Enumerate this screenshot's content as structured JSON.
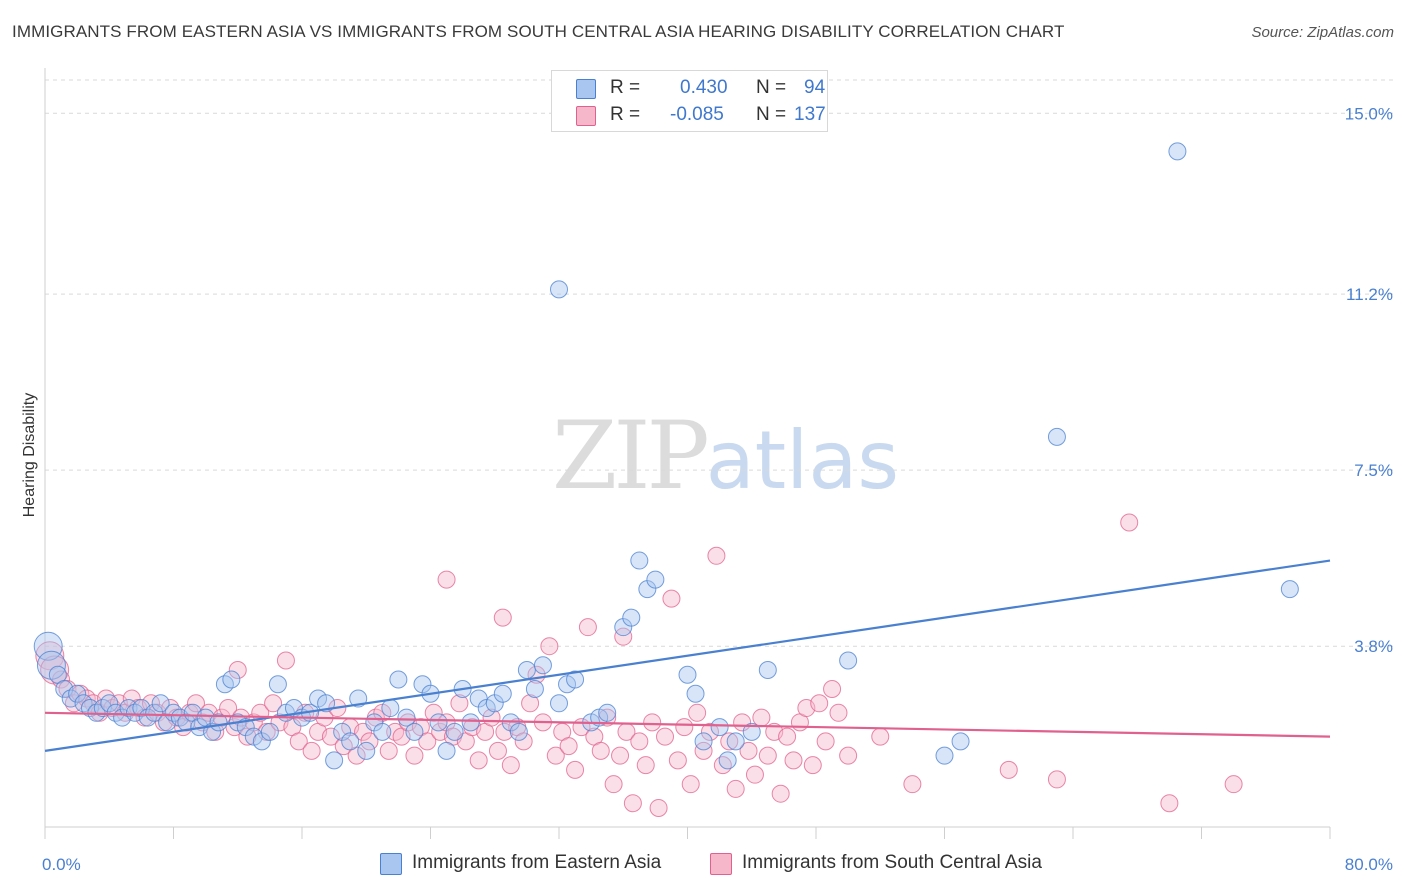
{
  "title": "IMMIGRANTS FROM EASTERN ASIA VS IMMIGRANTS FROM SOUTH CENTRAL ASIA HEARING DISABILITY CORRELATION CHART",
  "source": "Source: ZipAtlas.com",
  "watermark": {
    "zip": "ZIP",
    "atlas": "atlas"
  },
  "legend": {
    "rows": [
      {
        "r_label": "R =",
        "r_value": "0.430",
        "n_label": "N =",
        "n_value": "94",
        "color": "#a9c6f0"
      },
      {
        "r_label": "R =",
        "r_value": "-0.085",
        "n_label": "N =",
        "n_value": "137",
        "color": "#f6b7cb"
      }
    ]
  },
  "colors": {
    "blue": "#4a80d0",
    "blue_fill": "#a9c6f0",
    "pink": "#e0608e",
    "pink_fill": "#f6b7cb",
    "grid": "#d9d9d9"
  },
  "chart_data": {
    "type": "scatter",
    "title": "IMMIGRANTS FROM EASTERN ASIA VS IMMIGRANTS FROM SOUTH CENTRAL ASIA HEARING DISABILITY CORRELATION CHART",
    "xlabel": "",
    "ylabel": "Hearing Disability",
    "xlim": [
      0,
      80
    ],
    "ylim": [
      0,
      15.7
    ],
    "x_tick_labels": [
      "0.0%",
      "80.0%"
    ],
    "y_ticks": [
      3.8,
      7.5,
      11.2,
      15.0
    ],
    "y_tick_labels": [
      "3.8%",
      "7.5%",
      "11.2%",
      "15.0%"
    ],
    "grid": "horizontal dashed",
    "legend_position": "top-center",
    "series": [
      {
        "name": "Immigrants from Eastern Asia",
        "color": "#4a80d0",
        "trend": {
          "x": [
            0,
            80
          ],
          "y": [
            1.6,
            5.6
          ]
        },
        "points": [
          [
            0.2,
            3.8
          ],
          [
            0.4,
            3.4
          ],
          [
            0.8,
            3.2
          ],
          [
            1.2,
            2.9
          ],
          [
            1.6,
            2.7
          ],
          [
            2.0,
            2.8
          ],
          [
            2.4,
            2.6
          ],
          [
            2.8,
            2.5
          ],
          [
            3.2,
            2.4
          ],
          [
            3.6,
            2.5
          ],
          [
            4.0,
            2.6
          ],
          [
            4.4,
            2.4
          ],
          [
            4.8,
            2.3
          ],
          [
            5.2,
            2.5
          ],
          [
            5.6,
            2.4
          ],
          [
            6.0,
            2.5
          ],
          [
            6.4,
            2.3
          ],
          [
            6.8,
            2.4
          ],
          [
            7.2,
            2.6
          ],
          [
            7.6,
            2.2
          ],
          [
            8.0,
            2.4
          ],
          [
            8.4,
            2.3
          ],
          [
            8.8,
            2.2
          ],
          [
            9.2,
            2.4
          ],
          [
            9.6,
            2.1
          ],
          [
            10.0,
            2.3
          ],
          [
            10.4,
            2.0
          ],
          [
            10.8,
            2.2
          ],
          [
            11.2,
            3.0
          ],
          [
            11.6,
            3.1
          ],
          [
            12.0,
            2.2
          ],
          [
            12.5,
            2.1
          ],
          [
            13.0,
            1.9
          ],
          [
            13.5,
            1.8
          ],
          [
            14.0,
            2.0
          ],
          [
            14.5,
            3.0
          ],
          [
            15.0,
            2.4
          ],
          [
            15.5,
            2.5
          ],
          [
            16.0,
            2.3
          ],
          [
            16.5,
            2.4
          ],
          [
            17.0,
            2.7
          ],
          [
            17.5,
            2.6
          ],
          [
            18.0,
            1.4
          ],
          [
            18.5,
            2.0
          ],
          [
            19.0,
            1.8
          ],
          [
            19.5,
            2.7
          ],
          [
            20.0,
            1.6
          ],
          [
            20.5,
            2.2
          ],
          [
            21.0,
            2.0
          ],
          [
            21.5,
            2.5
          ],
          [
            22.0,
            3.1
          ],
          [
            22.5,
            2.3
          ],
          [
            23.0,
            2.0
          ],
          [
            23.5,
            3.0
          ],
          [
            24.0,
            2.8
          ],
          [
            24.5,
            2.2
          ],
          [
            25.0,
            1.6
          ],
          [
            25.5,
            2.0
          ],
          [
            26.0,
            2.9
          ],
          [
            26.5,
            2.2
          ],
          [
            27.0,
            2.7
          ],
          [
            27.5,
            2.5
          ],
          [
            28.0,
            2.6
          ],
          [
            28.5,
            2.8
          ],
          [
            29.0,
            2.2
          ],
          [
            29.5,
            2.0
          ],
          [
            30.0,
            3.3
          ],
          [
            30.5,
            2.9
          ],
          [
            31.0,
            3.4
          ],
          [
            32.0,
            2.6
          ],
          [
            32.5,
            3.0
          ],
          [
            33.0,
            3.1
          ],
          [
            34.0,
            2.2
          ],
          [
            34.5,
            2.3
          ],
          [
            35.0,
            2.4
          ],
          [
            36.0,
            4.2
          ],
          [
            36.5,
            4.4
          ],
          [
            37.0,
            5.6
          ],
          [
            37.5,
            5.0
          ],
          [
            38.0,
            5.2
          ],
          [
            40.0,
            3.2
          ],
          [
            40.5,
            2.8
          ],
          [
            41.0,
            1.8
          ],
          [
            42.0,
            2.1
          ],
          [
            42.5,
            1.4
          ],
          [
            43.0,
            1.8
          ],
          [
            44.0,
            2.0
          ],
          [
            45.0,
            3.3
          ],
          [
            50.0,
            3.5
          ],
          [
            56.0,
            1.5
          ],
          [
            57.0,
            1.8
          ],
          [
            63.0,
            8.2
          ],
          [
            70.5,
            14.2
          ],
          [
            77.5,
            5.0
          ],
          [
            32.0,
            11.3
          ]
        ]
      },
      {
        "name": "Immigrants from South Central Asia",
        "color": "#e0608e",
        "trend": {
          "x": [
            0,
            80
          ],
          "y": [
            2.4,
            1.9
          ]
        },
        "points": [
          [
            0.3,
            3.6
          ],
          [
            0.6,
            3.3
          ],
          [
            1.0,
            3.1
          ],
          [
            1.4,
            2.9
          ],
          [
            1.8,
            2.6
          ],
          [
            2.2,
            2.8
          ],
          [
            2.6,
            2.7
          ],
          [
            3.0,
            2.6
          ],
          [
            3.4,
            2.4
          ],
          [
            3.8,
            2.7
          ],
          [
            4.2,
            2.5
          ],
          [
            4.6,
            2.6
          ],
          [
            5.0,
            2.4
          ],
          [
            5.4,
            2.7
          ],
          [
            5.8,
            2.5
          ],
          [
            6.2,
            2.3
          ],
          [
            6.6,
            2.6
          ],
          [
            7.0,
            2.4
          ],
          [
            7.4,
            2.2
          ],
          [
            7.8,
            2.5
          ],
          [
            8.2,
            2.3
          ],
          [
            8.6,
            2.1
          ],
          [
            9.0,
            2.4
          ],
          [
            9.4,
            2.6
          ],
          [
            9.8,
            2.2
          ],
          [
            10.2,
            2.4
          ],
          [
            10.6,
            2.0
          ],
          [
            11.0,
            2.3
          ],
          [
            11.4,
            2.5
          ],
          [
            11.8,
            2.1
          ],
          [
            12.2,
            2.3
          ],
          [
            12.6,
            1.9
          ],
          [
            13.0,
            2.2
          ],
          [
            13.4,
            2.4
          ],
          [
            13.8,
            2.0
          ],
          [
            14.2,
            2.6
          ],
          [
            14.6,
            2.2
          ],
          [
            15.0,
            3.5
          ],
          [
            15.4,
            2.1
          ],
          [
            15.8,
            1.8
          ],
          [
            16.2,
            2.4
          ],
          [
            16.6,
            1.6
          ],
          [
            17.0,
            2.0
          ],
          [
            17.4,
            2.3
          ],
          [
            17.8,
            1.9
          ],
          [
            18.2,
            2.5
          ],
          [
            18.6,
            1.7
          ],
          [
            19.0,
            2.1
          ],
          [
            19.4,
            1.5
          ],
          [
            19.8,
            2.0
          ],
          [
            20.2,
            1.8
          ],
          [
            20.6,
            2.3
          ],
          [
            21.0,
            2.4
          ],
          [
            21.4,
            1.6
          ],
          [
            21.8,
            2.0
          ],
          [
            22.2,
            1.9
          ],
          [
            22.6,
            2.2
          ],
          [
            23.0,
            1.5
          ],
          [
            23.4,
            2.1
          ],
          [
            23.8,
            1.8
          ],
          [
            24.2,
            2.4
          ],
          [
            24.6,
            2.0
          ],
          [
            25.0,
            2.2
          ],
          [
            25.4,
            1.9
          ],
          [
            25.8,
            2.6
          ],
          [
            26.2,
            1.8
          ],
          [
            26.6,
            2.1
          ],
          [
            27.0,
            1.4
          ],
          [
            27.4,
            2.0
          ],
          [
            27.8,
            2.3
          ],
          [
            28.2,
            1.6
          ],
          [
            28.6,
            2.0
          ],
          [
            29.0,
            1.3
          ],
          [
            29.4,
            2.1
          ],
          [
            29.8,
            1.8
          ],
          [
            30.2,
            2.6
          ],
          [
            30.6,
            3.2
          ],
          [
            31.0,
            2.2
          ],
          [
            31.4,
            3.8
          ],
          [
            31.8,
            1.5
          ],
          [
            32.2,
            2.0
          ],
          [
            32.6,
            1.7
          ],
          [
            33.0,
            1.2
          ],
          [
            33.4,
            2.1
          ],
          [
            33.8,
            4.2
          ],
          [
            34.2,
            1.9
          ],
          [
            34.6,
            1.6
          ],
          [
            35.0,
            2.3
          ],
          [
            35.4,
            0.9
          ],
          [
            35.8,
            1.5
          ],
          [
            36.2,
            2.0
          ],
          [
            36.6,
            0.5
          ],
          [
            37.0,
            1.8
          ],
          [
            37.4,
            1.3
          ],
          [
            37.8,
            2.2
          ],
          [
            38.2,
            0.4
          ],
          [
            38.6,
            1.9
          ],
          [
            39.0,
            4.8
          ],
          [
            39.4,
            1.4
          ],
          [
            39.8,
            2.1
          ],
          [
            40.2,
            0.9
          ],
          [
            40.6,
            2.4
          ],
          [
            41.0,
            1.6
          ],
          [
            41.4,
            2.0
          ],
          [
            41.8,
            5.7
          ],
          [
            42.2,
            1.3
          ],
          [
            42.6,
            1.8
          ],
          [
            43.0,
            0.8
          ],
          [
            43.4,
            2.2
          ],
          [
            43.8,
            1.6
          ],
          [
            44.2,
            1.1
          ],
          [
            44.6,
            2.3
          ],
          [
            45.0,
            1.5
          ],
          [
            45.4,
            2.0
          ],
          [
            45.8,
            0.7
          ],
          [
            46.2,
            1.9
          ],
          [
            46.6,
            1.4
          ],
          [
            47.0,
            2.2
          ],
          [
            47.4,
            2.5
          ],
          [
            47.8,
            1.3
          ],
          [
            48.2,
            2.6
          ],
          [
            48.6,
            1.8
          ],
          [
            49.0,
            2.9
          ],
          [
            49.4,
            2.4
          ],
          [
            50.0,
            1.5
          ],
          [
            52.0,
            1.9
          ],
          [
            54.0,
            0.9
          ],
          [
            60.0,
            1.2
          ],
          [
            63.0,
            1.0
          ],
          [
            67.5,
            6.4
          ],
          [
            70.0,
            0.5
          ],
          [
            74.0,
            0.9
          ],
          [
            25.0,
            5.2
          ],
          [
            28.5,
            4.4
          ],
          [
            36.0,
            4.0
          ],
          [
            12.0,
            3.3
          ]
        ]
      }
    ]
  },
  "bottom_legend": [
    {
      "label": "Immigrants from Eastern Asia",
      "color": "#a9c6f0",
      "stroke": "#4a80d0"
    },
    {
      "label": "Immigrants from South Central Asia",
      "color": "#f6b7cb",
      "stroke": "#e0608e"
    }
  ]
}
